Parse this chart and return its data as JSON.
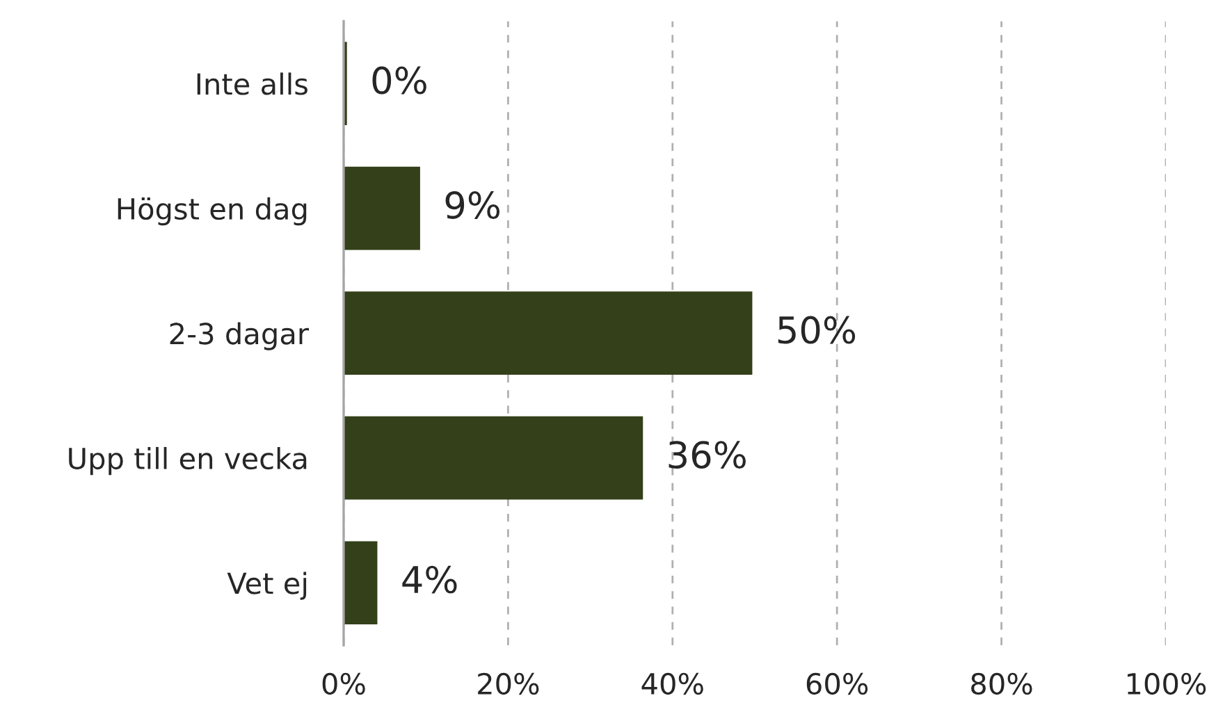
{
  "chart_data": {
    "type": "bar",
    "orientation": "horizontal",
    "categories": [
      "Inte alls",
      "Högst en dag",
      "2-3 dagar",
      "Upp till en vecka",
      "Vet ej"
    ],
    "values": [
      0.4,
      9.3,
      49.7,
      36.4,
      4.1
    ],
    "value_labels": [
      "0%",
      "9%",
      "50%",
      "36%",
      "4%"
    ],
    "color": "#334019",
    "xlim": [
      0,
      100
    ],
    "xticks": [
      {
        "value": 0,
        "label": "0%"
      },
      {
        "value": 20,
        "label": "20%"
      },
      {
        "value": 40,
        "label": "40%"
      },
      {
        "value": 60,
        "label": "60%"
      },
      {
        "value": 80,
        "label": "80%"
      },
      {
        "value": 100,
        "label": "100%"
      }
    ],
    "grid": "x"
  }
}
